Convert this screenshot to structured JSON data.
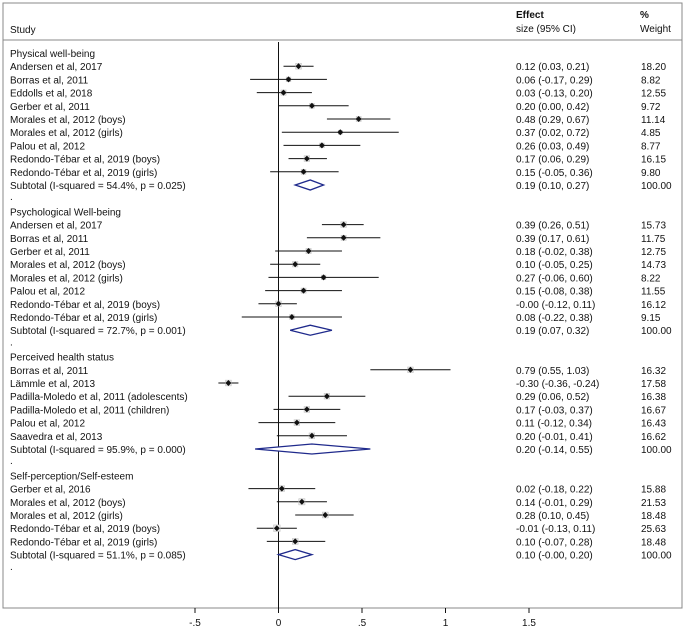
{
  "chart_data": {
    "type": "forest",
    "headers": {
      "study": "Study",
      "effect_line1": "Effect",
      "effect_line2": "size (95% CI)",
      "weight_line1": "%",
      "weight_line2": "Weight"
    },
    "xlim": [
      -0.9,
      1.9
    ],
    "xticks": [
      "-.5",
      "0",
      ".5",
      "1",
      "1.5"
    ],
    "xtick_values": [
      -0.5,
      0,
      0.5,
      1,
      1.5
    ],
    "groups": [
      {
        "title": "Physical well-being",
        "studies": [
          {
            "label": "Andersen et al, 2017",
            "es": 0.12,
            "lo": 0.03,
            "hi": 0.21,
            "ci": "0.12 (0.03, 0.21)",
            "weight": "18.20"
          },
          {
            "label": "Borras et al, 2011",
            "es": 0.06,
            "lo": -0.17,
            "hi": 0.29,
            "ci": "0.06 (-0.17, 0.29)",
            "weight": "8.82"
          },
          {
            "label": "Eddolls et al, 2018",
            "es": 0.03,
            "lo": -0.13,
            "hi": 0.2,
            "ci": "0.03 (-0.13, 0.20)",
            "weight": "12.55"
          },
          {
            "label": "Gerber et al, 2011",
            "es": 0.2,
            "lo": 0.0,
            "hi": 0.42,
            "ci": "0.20 (0.00, 0.42)",
            "weight": "9.72"
          },
          {
            "label": "Morales et al, 2012 (boys)",
            "es": 0.48,
            "lo": 0.29,
            "hi": 0.67,
            "ci": "0.48 (0.29, 0.67)",
            "weight": "11.14"
          },
          {
            "label": "Morales et al, 2012 (girls)",
            "es": 0.37,
            "lo": 0.02,
            "hi": 0.72,
            "ci": "0.37 (0.02, 0.72)",
            "weight": "4.85"
          },
          {
            "label": "Palou et al, 2012",
            "es": 0.26,
            "lo": 0.03,
            "hi": 0.49,
            "ci": "0.26 (0.03, 0.49)",
            "weight": "8.77"
          },
          {
            "label": "Redondo-Tébar et al, 2019 (boys)",
            "es": 0.17,
            "lo": 0.06,
            "hi": 0.29,
            "ci": "0.17 (0.06, 0.29)",
            "weight": "16.15"
          },
          {
            "label": "Redondo-Tébar et al, 2019 (girls)",
            "es": 0.15,
            "lo": -0.05,
            "hi": 0.36,
            "ci": "0.15 (-0.05, 0.36)",
            "weight": "9.80"
          }
        ],
        "subtotal": {
          "label": "Subtotal  (I-squared = 54.4%, p = 0.025)",
          "es": 0.19,
          "lo": 0.1,
          "hi": 0.27,
          "ci": "0.19 (0.10, 0.27)",
          "weight": "100.00"
        }
      },
      {
        "title": "Psychological Well-being",
        "studies": [
          {
            "label": "Andersen et al, 2017",
            "es": 0.39,
            "lo": 0.26,
            "hi": 0.51,
            "ci": "0.39 (0.26, 0.51)",
            "weight": "15.73"
          },
          {
            "label": "Borras et al, 2011",
            "es": 0.39,
            "lo": 0.17,
            "hi": 0.61,
            "ci": "0.39 (0.17, 0.61)",
            "weight": "11.75"
          },
          {
            "label": "Gerber et al, 2011",
            "es": 0.18,
            "lo": -0.02,
            "hi": 0.38,
            "ci": "0.18 (-0.02, 0.38)",
            "weight": "12.75"
          },
          {
            "label": "Morales et al, 2012 (boys)",
            "es": 0.1,
            "lo": -0.05,
            "hi": 0.25,
            "ci": "0.10 (-0.05, 0.25)",
            "weight": "14.73"
          },
          {
            "label": "Morales et al, 2012 (girls)",
            "es": 0.27,
            "lo": -0.06,
            "hi": 0.6,
            "ci": "0.27 (-0.06, 0.60)",
            "weight": "8.22"
          },
          {
            "label": "Palou et al, 2012",
            "es": 0.15,
            "lo": -0.08,
            "hi": 0.38,
            "ci": "0.15 (-0.08, 0.38)",
            "weight": "11.55"
          },
          {
            "label": "Redondo-Tébar et al, 2019 (boys)",
            "es": -0.0,
            "lo": -0.12,
            "hi": 0.11,
            "ci": "-0.00 (-0.12, 0.11)",
            "weight": "16.12"
          },
          {
            "label": "Redondo-Tébar et al, 2019 (girls)",
            "es": 0.08,
            "lo": -0.22,
            "hi": 0.38,
            "ci": "0.08 (-0.22, 0.38)",
            "weight": "9.15"
          }
        ],
        "subtotal": {
          "label": "Subtotal  (I-squared = 72.7%, p = 0.001)",
          "es": 0.19,
          "lo": 0.07,
          "hi": 0.32,
          "ci": "0.19 (0.07, 0.32)",
          "weight": "100.00"
        }
      },
      {
        "title": "Perceived health status",
        "studies": [
          {
            "label": "Borras et al, 2011",
            "es": 0.79,
            "lo": 0.55,
            "hi": 1.03,
            "ci": "0.79 (0.55, 1.03)",
            "weight": "16.32"
          },
          {
            "label": "Lämmle et al, 2013",
            "es": -0.3,
            "lo": -0.36,
            "hi": -0.24,
            "ci": "-0.30 (-0.36, -0.24)",
            "weight": "17.58"
          },
          {
            "label": "Padilla-Moledo et al, 2011 (adolescents)",
            "es": 0.29,
            "lo": 0.06,
            "hi": 0.52,
            "ci": "0.29 (0.06, 0.52)",
            "weight": "16.38"
          },
          {
            "label": "Padilla-Moledo et al, 2011 (children)",
            "es": 0.17,
            "lo": -0.03,
            "hi": 0.37,
            "ci": "0.17 (-0.03, 0.37)",
            "weight": "16.67"
          },
          {
            "label": "Palou et al, 2012",
            "es": 0.11,
            "lo": -0.12,
            "hi": 0.34,
            "ci": "0.11 (-0.12, 0.34)",
            "weight": "16.43"
          },
          {
            "label": "Saavedra et al, 2013",
            "es": 0.2,
            "lo": -0.01,
            "hi": 0.41,
            "ci": "0.20 (-0.01, 0.41)",
            "weight": "16.62"
          }
        ],
        "subtotal": {
          "label": "Subtotal  (I-squared = 95.9%, p = 0.000)",
          "es": 0.2,
          "lo": -0.14,
          "hi": 0.55,
          "ci": "0.20 (-0.14, 0.55)",
          "weight": "100.00"
        }
      },
      {
        "title": "Self-perception/Self-esteem",
        "studies": [
          {
            "label": "Gerber et al, 2016",
            "es": 0.02,
            "lo": -0.18,
            "hi": 0.22,
            "ci": "0.02 (-0.18, 0.22)",
            "weight": "15.88"
          },
          {
            "label": "Morales et al, 2012 (boys)",
            "es": 0.14,
            "lo": -0.01,
            "hi": 0.29,
            "ci": "0.14 (-0.01, 0.29)",
            "weight": "21.53"
          },
          {
            "label": "Morales et al, 2012 (girls)",
            "es": 0.28,
            "lo": 0.1,
            "hi": 0.45,
            "ci": "0.28 (0.10, 0.45)",
            "weight": "18.48"
          },
          {
            "label": "Redondo-Tébar et al, 2019 (boys)",
            "es": -0.01,
            "lo": -0.13,
            "hi": 0.11,
            "ci": "-0.01 (-0.13, 0.11)",
            "weight": "25.63"
          },
          {
            "label": "Redondo-Tébar et al, 2019 (girls)",
            "es": 0.1,
            "lo": -0.07,
            "hi": 0.28,
            "ci": "0.10 (-0.07, 0.28)",
            "weight": "18.48"
          }
        ],
        "subtotal": {
          "label": "Subtotal  (I-squared = 51.1%, p = 0.085)",
          "es": 0.1,
          "lo": -0.0,
          "hi": 0.2,
          "ci": "0.10 (-0.00, 0.20)",
          "weight": "100.00"
        }
      }
    ],
    "colors": {
      "diamond": "#1f2a8c",
      "ink": "#111111",
      "frame": "#888888"
    },
    "separator": "."
  }
}
